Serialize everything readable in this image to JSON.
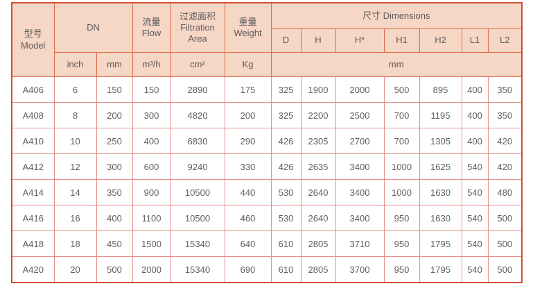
{
  "colors": {
    "header_bg": "#f6d6c5",
    "header_border": "#dc6c49",
    "data_border": "#e5908a",
    "outer_border": "#cf4e39",
    "text": "#5a5a5a"
  },
  "table": {
    "header": {
      "model": "型号\nModel",
      "dn": "DN",
      "flow": "流量\nFlow",
      "filtration_area": "过滤面积\nFiltration\nArea",
      "weight": "重量\nWeight",
      "dimensions": "尺寸 Dimensions",
      "dim_cols": [
        "D",
        "H",
        "H*",
        "H1",
        "H2",
        "L1",
        "L2"
      ],
      "units": {
        "inch": "inch",
        "mm": "mm",
        "flow": "m³/h",
        "area": "cm²",
        "weight": "Kg",
        "dims": "mm"
      }
    },
    "rows": [
      [
        "A406",
        "6",
        "150",
        "150",
        "2890",
        "175",
        "325",
        "1900",
        "2000",
        "500",
        "895",
        "400",
        "350"
      ],
      [
        "A408",
        "8",
        "200",
        "300",
        "4820",
        "200",
        "325",
        "2200",
        "2500",
        "700",
        "1195",
        "400",
        "350"
      ],
      [
        "A410",
        "10",
        "250",
        "400",
        "6830",
        "290",
        "426",
        "2305",
        "2700",
        "700",
        "1305",
        "400",
        "420"
      ],
      [
        "A412",
        "12",
        "300",
        "600",
        "9240",
        "330",
        "426",
        "2635",
        "3400",
        "1000",
        "1625",
        "540",
        "420"
      ],
      [
        "A414",
        "14",
        "350",
        "900",
        "10500",
        "440",
        "530",
        "2640",
        "3400",
        "1000",
        "1630",
        "540",
        "480"
      ],
      [
        "A416",
        "16",
        "400",
        "1100",
        "10500",
        "460",
        "530",
        "2640",
        "3400",
        "950",
        "1630",
        "540",
        "500"
      ],
      [
        "A418",
        "18",
        "450",
        "1500",
        "15340",
        "640",
        "610",
        "2805",
        "3710",
        "950",
        "1795",
        "540",
        "500"
      ],
      [
        "A420",
        "20",
        "500",
        "2000",
        "15340",
        "690",
        "610",
        "2805",
        "3700",
        "950",
        "1795",
        "540",
        "500"
      ]
    ]
  }
}
